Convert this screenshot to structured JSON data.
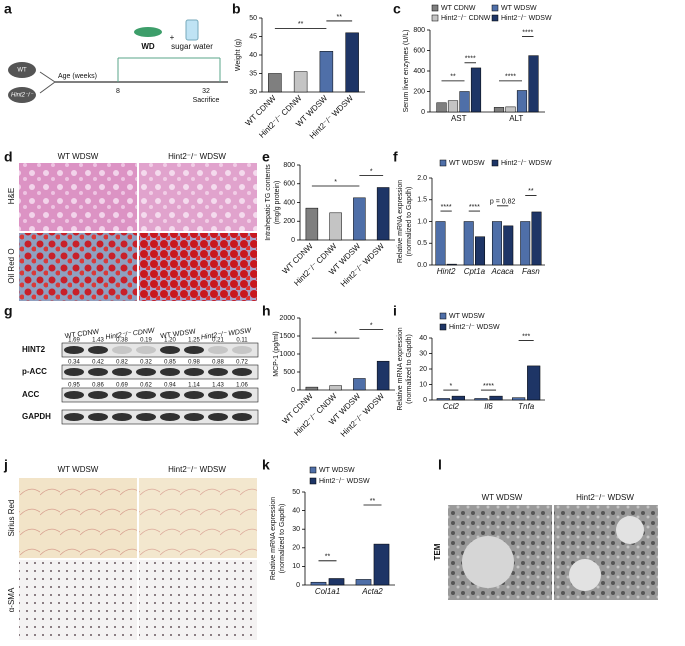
{
  "panel_labels": [
    "a",
    "b",
    "c",
    "d",
    "e",
    "f",
    "g",
    "h",
    "i",
    "j",
    "k",
    "l"
  ],
  "schematic": {
    "genotypes": [
      "WT",
      "Hint2⁻/⁻"
    ],
    "diet": "WD",
    "plus": "+",
    "water": "sugar water",
    "axis": "Age (weeks)",
    "start": 8,
    "end": 32,
    "end_label": "Sacrifice"
  },
  "histology_d": {
    "columns": [
      "WT WDSW",
      "Hint2⁻/⁻ WDSW"
    ],
    "rows": [
      "H&E",
      "Oil Red O"
    ]
  },
  "blot": {
    "lanes": [
      "WT CDNW",
      "Hint2⁻/⁻ CDNW",
      "WT WDSW",
      "Hint2⁻/⁻ WDSW"
    ],
    "proteins": [
      "HINT2",
      "p-ACC",
      "ACC",
      "GAPDH"
    ],
    "quantification": [
      [
        "1.69",
        "1.43",
        "0.38",
        "0.19",
        "1.20",
        "1.25",
        "0.21",
        "0.11"
      ],
      [
        "0.34",
        "0.42",
        "0.82",
        "0.32",
        "0.85",
        "0.98",
        "0.88",
        "0.72"
      ],
      [
        "0.95",
        "0.86",
        "0.69",
        "0.62",
        "0.94",
        "1.14",
        "1.43",
        "1.06"
      ]
    ]
  },
  "histology_j": {
    "columns": [
      "WT WDSW",
      "Hint2⁻/⁻ WDSW"
    ],
    "rows": [
      "Sirius Red",
      "α-SMA"
    ]
  },
  "tem": {
    "columns": [
      "WT WDSW",
      "Hint2⁻/⁻ WDSW"
    ],
    "row": "TEM"
  },
  "chart_data": [
    {
      "type": "bar",
      "ylabel": [
        "Weight (g)"
      ],
      "categories": [
        "WT CDNW",
        "Hint2⁻/⁻ CDNW",
        "WT WDSW",
        "Hint2⁻/⁻ WDSW"
      ],
      "values": [
        35,
        35.5,
        41,
        46
      ],
      "colors": [
        "#7f7f7f",
        "#c4c4c4",
        "#4f6fa8",
        "#1e3566"
      ],
      "ylim": [
        30,
        50
      ],
      "yticks": [
        30,
        35,
        40,
        45,
        50
      ],
      "annotations": [
        "**",
        "**"
      ]
    },
    {
      "type": "bar",
      "ylabel": [
        "Serum liver enzymes (U/L)"
      ],
      "categories": [
        "AST",
        "ALT"
      ],
      "series": [
        {
          "name": "WT CDNW",
          "color": "#7f7f7f",
          "values": [
            90,
            45
          ]
        },
        {
          "name": "Hint2⁻/⁻ CDNW",
          "color": "#c4c4c4",
          "values": [
            110,
            50
          ]
        },
        {
          "name": "WT WDSW",
          "color": "#4f6fa8",
          "values": [
            200,
            210
          ]
        },
        {
          "name": "Hint2⁻/⁻ WDSW",
          "color": "#1e3566",
          "values": [
            430,
            550
          ]
        }
      ],
      "ylim": [
        0,
        800
      ],
      "yticks": [
        0,
        200,
        400,
        600,
        800
      ],
      "annotations": [
        "**",
        "****",
        "****",
        "****"
      ]
    },
    {
      "type": "bar",
      "ylabel": [
        "Intrahepatic TG contents",
        "(mg/g protein)"
      ],
      "categories": [
        "WT CDNW",
        "Hint2⁻/⁻ CDNW",
        "WT WDSW",
        "Hint2⁻/⁻ WDSW"
      ],
      "values": [
        340,
        290,
        450,
        560
      ],
      "colors": [
        "#7f7f7f",
        "#c4c4c4",
        "#4f6fa8",
        "#1e3566"
      ],
      "ylim": [
        0,
        800
      ],
      "yticks": [
        0,
        200,
        400,
        600,
        800
      ],
      "annotations": [
        "*",
        "*"
      ]
    },
    {
      "type": "bar",
      "ylabel": [
        "Relative mRNA expression",
        "(normalized to Gapdh)"
      ],
      "categories": [
        "Hint2",
        "Cpt1a",
        "Acaca",
        "Fasn"
      ],
      "series": [
        {
          "name": "WT WDSW",
          "color": "#4f6fa8",
          "values": [
            1.0,
            1.0,
            1.0,
            1.0
          ]
        },
        {
          "name": "Hint2⁻/⁻ WDSW",
          "color": "#1e3566",
          "values": [
            0.02,
            0.65,
            0.9,
            1.22
          ]
        }
      ],
      "ylim": [
        0,
        2
      ],
      "yticks": [
        {
          "value": 0,
          "label": "0.0"
        },
        0.5,
        {
          "value": 1,
          "label": "1.0"
        },
        1.5,
        {
          "value": 2,
          "label": "2.0"
        }
      ],
      "annotations": [
        "****",
        "****",
        "p = 0.82",
        "**"
      ]
    },
    {
      "type": "bar",
      "ylabel": [
        "MCP-1 (pg/ml)"
      ],
      "categories": [
        "WT CDNW",
        "Hint2⁻/⁻ CNDW",
        "WT WDSW",
        "Hint2⁻/⁻ WDSW"
      ],
      "values": [
        80,
        120,
        320,
        800
      ],
      "colors": [
        "#7f7f7f",
        "#c4c4c4",
        "#4f6fa8",
        "#1e3566"
      ],
      "ylim": [
        0,
        2000
      ],
      "yticks": [
        0,
        500,
        1000,
        1500,
        2000
      ],
      "annotations": [
        "*",
        "*"
      ]
    },
    {
      "type": "bar",
      "ylabel": [
        "Relative mRNA expression",
        "(normalized to Gapdh)"
      ],
      "categories": [
        "Ccl2",
        "Il6",
        "Tnfa"
      ],
      "series": [
        {
          "name": "WT WDSW",
          "color": "#4f6fa8",
          "values": [
            1.0,
            1.0,
            1.5
          ]
        },
        {
          "name": "Hint2⁻/⁻ WDSW",
          "color": "#1e3566",
          "values": [
            2.5,
            2.5,
            22
          ]
        }
      ],
      "ylim": [
        0,
        40
      ],
      "yticks": [
        0,
        10,
        20,
        30,
        40
      ],
      "annotations": [
        "*",
        "****",
        "***"
      ]
    },
    {
      "type": "bar",
      "ylabel": [
        "Relative mRNA expression",
        "(normalized to Gapdh)"
      ],
      "categories": [
        "Col1a1",
        "Acta2"
      ],
      "series": [
        {
          "name": "WT WDSW",
          "color": "#4f6fa8",
          "values": [
            1.5,
            3
          ]
        },
        {
          "name": "Hint2⁻/⁻ WDSW",
          "color": "#1e3566",
          "values": [
            3.5,
            22
          ]
        }
      ],
      "ylim": [
        0,
        50
      ],
      "yticks": [
        0,
        10,
        20,
        30,
        40,
        50
      ],
      "annotations": [
        "**",
        "**"
      ]
    }
  ]
}
